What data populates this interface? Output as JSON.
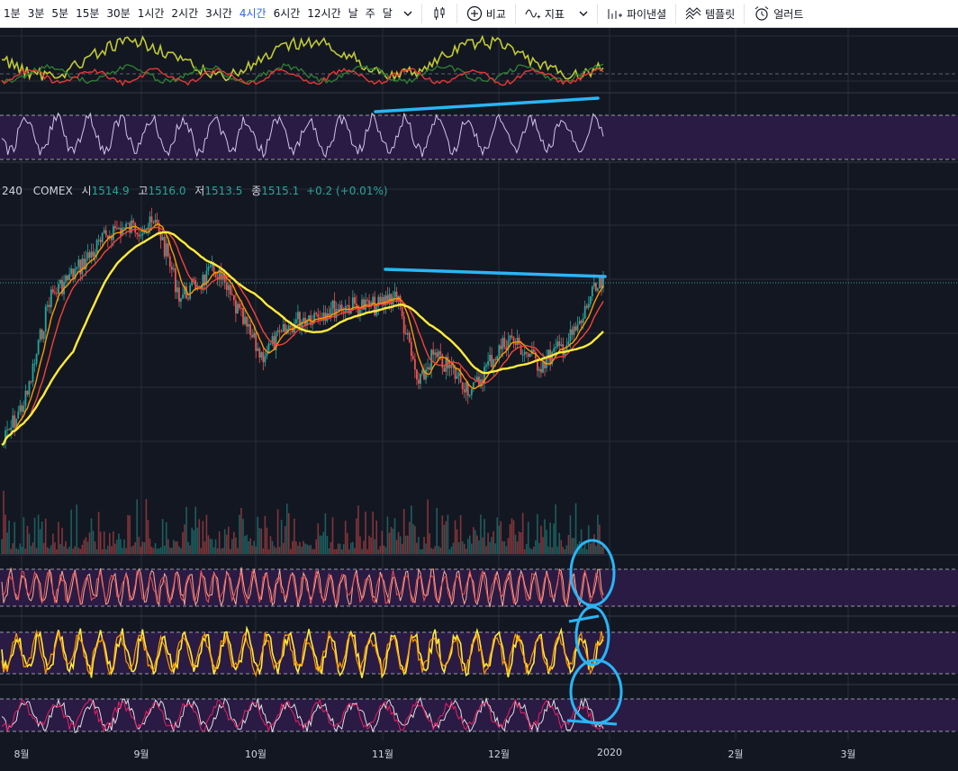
{
  "toolbar": {
    "intervals": [
      "1분",
      "3분",
      "5분",
      "15분",
      "30분",
      "1시간",
      "2시간",
      "3시간",
      "4시간",
      "6시간",
      "12시간",
      "날",
      "주",
      "달"
    ],
    "active_interval": "4시간",
    "compare_label": "비교",
    "indicators_label": "지표",
    "financials_label": "파이낸셜",
    "templates_label": "템플릿",
    "alert_label": "얼러트"
  },
  "legend": {
    "interval": "240",
    "exchange": "COMEX",
    "open_label": "시",
    "open": "1514.9",
    "high_label": "고",
    "high": "1516.0",
    "low_label": "저",
    "low": "1513.5",
    "close_label": "종",
    "close": "1515.1",
    "change": "+0.2 (+0.01%)"
  },
  "xaxis": {
    "months": [
      "8월",
      "9월",
      "10월",
      "11월",
      "12월",
      "2020",
      "2월",
      "3월"
    ]
  },
  "colors": {
    "background": "#131722",
    "up": "#26a69a",
    "down": "#ef5350",
    "ma_fast": "#ff9800",
    "ma_mid": "#f44336",
    "ma_slow": "#ffeb3b",
    "annotation": "#29b6f6",
    "oscillator_band": "#2a1b45",
    "rsi_line": "#d1c4e9"
  },
  "chart_data": {
    "type": "candlestick",
    "series": [
      {
        "name": "price",
        "close_start": 1415,
        "close_end": 1515.1
      },
      {
        "name": "volume"
      }
    ],
    "annotations": [
      {
        "type": "trendline",
        "pane": "price",
        "color": "#29b6f6"
      },
      {
        "type": "trendline",
        "pane": "rsi",
        "color": "#29b6f6"
      },
      {
        "type": "circles",
        "pane": "oscillators",
        "color": "#29b6f6",
        "count": 3
      }
    ]
  }
}
